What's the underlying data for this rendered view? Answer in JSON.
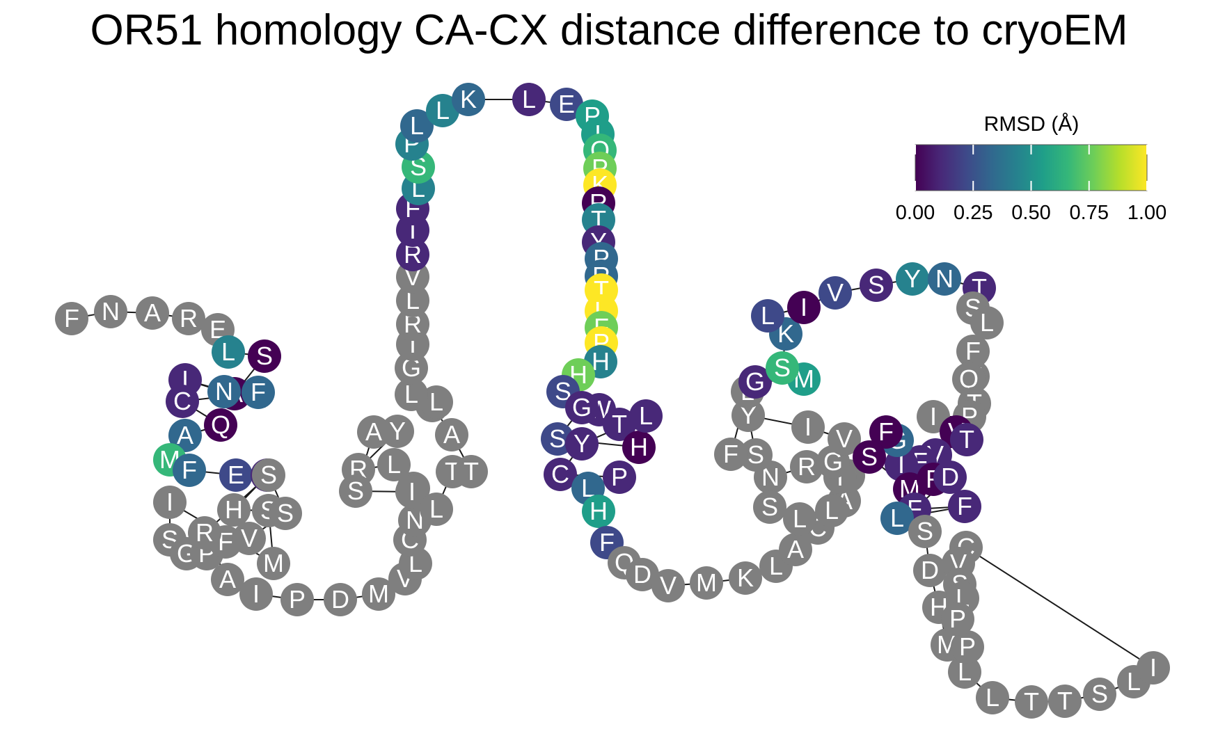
{
  "title": "OR51 homology CA-CX distance difference to cryoEM",
  "colors": {
    "no_data": "#7f7f7f",
    "edge": "#1a1a1a",
    "viridis": [
      "#440154",
      "#482878",
      "#3e4989",
      "#31688e",
      "#26828e",
      "#1f9e89",
      "#35b779",
      "#6ece58",
      "#b5de2b",
      "#fde725"
    ]
  },
  "colorbar": {
    "title": "RMSD (Å)",
    "ticks": [
      "0.00",
      "0.25",
      "0.50",
      "0.75",
      "1.00"
    ],
    "range": [
      0,
      1
    ]
  },
  "sequence": "FNARELSAINFCQAMFEFHSMISGPFVSSRAIPDMVLCNPLRYASILTTAKLLGIRLVRTFLSPLLKLEPIQPKRTYPRTLFPHHSWTGSHLYCPLHFQDVMKLACADIRNSLLGVIYSFLGMSKLIVSYNTSLFMQTPIVTVFIGFSMFDFFLSDHMLLTTSLICVSLPPFVFYPGILHSFTTSLLSQLSVPVHHPVLMAVYFLNAAPVLMNPSIRYKPLLKSLAKKI"
}
